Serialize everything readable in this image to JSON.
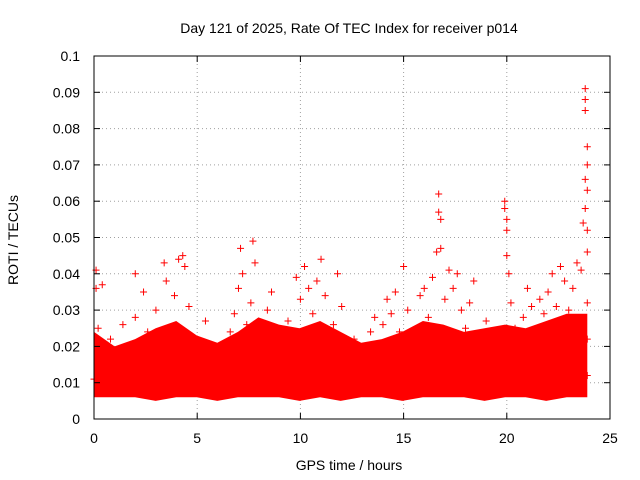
{
  "chart_data": {
    "type": "scatter",
    "title": "Day 121 of 2025, Rate Of TEC Index for receiver p014",
    "xlabel": "GPS time / hours",
    "ylabel": "ROTI / TECUs",
    "xlim": [
      0,
      25
    ],
    "ylim": [
      0,
      0.1
    ],
    "xticks": [
      0,
      5,
      10,
      15,
      20,
      25
    ],
    "xtick_labels": [
      "0",
      "5",
      "10",
      "15",
      "20",
      "25"
    ],
    "yticks": [
      0,
      0.01,
      0.02,
      0.03,
      0.04,
      0.05,
      0.06,
      0.07,
      0.08,
      0.09,
      0.1
    ],
    "ytick_labels": [
      "0",
      "0.01",
      "0.02",
      "0.03",
      "0.04",
      "0.05",
      "0.06",
      "0.07",
      "0.08",
      "0.09",
      "0.1"
    ],
    "grid": true,
    "marker": "+",
    "series_color": "#ff0000",
    "series": [
      {
        "points": [
          [
            0.0,
            0.011
          ],
          [
            0.1,
            0.041
          ],
          [
            0.1,
            0.036
          ],
          [
            0.2,
            0.025
          ],
          [
            0.2,
            0.014
          ],
          [
            0.4,
            0.037
          ],
          [
            0.4,
            0.009
          ],
          [
            0.6,
            0.018
          ],
          [
            0.8,
            0.022
          ],
          [
            1.0,
            0.013
          ],
          [
            1.2,
            0.009
          ],
          [
            1.4,
            0.026
          ],
          [
            1.6,
            0.02
          ],
          [
            1.8,
            0.017
          ],
          [
            2.0,
            0.04
          ],
          [
            2.0,
            0.028
          ],
          [
            2.2,
            0.012
          ],
          [
            2.4,
            0.035
          ],
          [
            2.6,
            0.024
          ],
          [
            2.8,
            0.011
          ],
          [
            3.0,
            0.03
          ],
          [
            3.2,
            0.022
          ],
          [
            3.4,
            0.043
          ],
          [
            3.5,
            0.038
          ],
          [
            3.7,
            0.019
          ],
          [
            3.9,
            0.034
          ],
          [
            4.1,
            0.044
          ],
          [
            4.3,
            0.045
          ],
          [
            4.4,
            0.042
          ],
          [
            4.6,
            0.031
          ],
          [
            4.8,
            0.018
          ],
          [
            5.0,
            0.022
          ],
          [
            5.2,
            0.012
          ],
          [
            5.4,
            0.027
          ],
          [
            5.6,
            0.008
          ],
          [
            5.8,
            0.016
          ],
          [
            6.0,
            0.013
          ],
          [
            6.2,
            0.01
          ],
          [
            6.4,
            0.019
          ],
          [
            6.6,
            0.024
          ],
          [
            6.8,
            0.029
          ],
          [
            7.0,
            0.036
          ],
          [
            7.1,
            0.047
          ],
          [
            7.2,
            0.04
          ],
          [
            7.4,
            0.026
          ],
          [
            7.6,
            0.032
          ],
          [
            7.7,
            0.049
          ],
          [
            7.8,
            0.043
          ],
          [
            8.0,
            0.021
          ],
          [
            8.2,
            0.013
          ],
          [
            8.4,
            0.03
          ],
          [
            8.6,
            0.035
          ],
          [
            8.8,
            0.024
          ],
          [
            9.0,
            0.015
          ],
          [
            9.2,
            0.011
          ],
          [
            9.4,
            0.027
          ],
          [
            9.6,
            0.02
          ],
          [
            9.8,
            0.039
          ],
          [
            10.0,
            0.033
          ],
          [
            10.2,
            0.042
          ],
          [
            10.4,
            0.036
          ],
          [
            10.6,
            0.029
          ],
          [
            10.8,
            0.038
          ],
          [
            11.0,
            0.044
          ],
          [
            11.2,
            0.034
          ],
          [
            11.4,
            0.016
          ],
          [
            11.6,
            0.026
          ],
          [
            11.8,
            0.04
          ],
          [
            12.0,
            0.031
          ],
          [
            12.2,
            0.019
          ],
          [
            12.4,
            0.012
          ],
          [
            12.6,
            0.022
          ],
          [
            12.8,
            0.015
          ],
          [
            13.0,
            0.009
          ],
          [
            13.2,
            0.017
          ],
          [
            13.4,
            0.024
          ],
          [
            13.6,
            0.028
          ],
          [
            13.8,
            0.02
          ],
          [
            14.0,
            0.026
          ],
          [
            14.2,
            0.033
          ],
          [
            14.4,
            0.029
          ],
          [
            14.6,
            0.035
          ],
          [
            14.8,
            0.024
          ],
          [
            15.0,
            0.018
          ],
          [
            15.0,
            0.042
          ],
          [
            15.2,
            0.03
          ],
          [
            15.4,
            0.014
          ],
          [
            15.6,
            0.021
          ],
          [
            15.8,
            0.034
          ],
          [
            16.0,
            0.036
          ],
          [
            16.2,
            0.028
          ],
          [
            16.4,
            0.039
          ],
          [
            16.6,
            0.046
          ],
          [
            16.7,
            0.062
          ],
          [
            16.7,
            0.057
          ],
          [
            16.8,
            0.055
          ],
          [
            16.8,
            0.047
          ],
          [
            17.0,
            0.033
          ],
          [
            17.2,
            0.041
          ],
          [
            17.4,
            0.036
          ],
          [
            17.6,
            0.04
          ],
          [
            17.8,
            0.03
          ],
          [
            18.0,
            0.025
          ],
          [
            18.2,
            0.032
          ],
          [
            18.4,
            0.038
          ],
          [
            18.6,
            0.022
          ],
          [
            18.8,
            0.015
          ],
          [
            19.0,
            0.027
          ],
          [
            19.2,
            0.02
          ],
          [
            19.4,
            0.024
          ],
          [
            19.6,
            0.018
          ],
          [
            19.9,
            0.06
          ],
          [
            19.9,
            0.058
          ],
          [
            20.0,
            0.055
          ],
          [
            20.0,
            0.052
          ],
          [
            20.0,
            0.045
          ],
          [
            20.1,
            0.04
          ],
          [
            20.2,
            0.032
          ],
          [
            20.4,
            0.025
          ],
          [
            20.6,
            0.02
          ],
          [
            20.8,
            0.028
          ],
          [
            21.0,
            0.036
          ],
          [
            21.2,
            0.031
          ],
          [
            21.4,
            0.024
          ],
          [
            21.6,
            0.033
          ],
          [
            21.8,
            0.029
          ],
          [
            22.0,
            0.035
          ],
          [
            22.2,
            0.04
          ],
          [
            22.4,
            0.031
          ],
          [
            22.6,
            0.042
          ],
          [
            22.8,
            0.038
          ],
          [
            23.0,
            0.03
          ],
          [
            23.2,
            0.036
          ],
          [
            23.4,
            0.043
          ],
          [
            23.6,
            0.041
          ],
          [
            23.7,
            0.054
          ],
          [
            23.8,
            0.058
          ],
          [
            23.8,
            0.066
          ],
          [
            23.8,
            0.085
          ],
          [
            23.8,
            0.091
          ],
          [
            23.8,
            0.088
          ],
          [
            23.9,
            0.075
          ],
          [
            23.9,
            0.07
          ],
          [
            23.9,
            0.063
          ],
          [
            23.9,
            0.052
          ],
          [
            23.9,
            0.046
          ],
          [
            23.9,
            0.032
          ],
          [
            23.9,
            0.022
          ],
          [
            23.9,
            0.012
          ]
        ]
      }
    ],
    "band": {
      "description_hours": [
        0,
        23.9
      ],
      "lower": [
        0.006,
        0.006,
        0.006,
        0.005,
        0.006,
        0.006,
        0.005,
        0.006,
        0.006,
        0.006,
        0.005,
        0.006,
        0.005,
        0.006,
        0.006,
        0.005,
        0.006,
        0.006,
        0.006,
        0.005,
        0.006,
        0.006,
        0.005,
        0.006,
        0.006
      ],
      "upper": [
        0.024,
        0.02,
        0.022,
        0.025,
        0.027,
        0.023,
        0.021,
        0.024,
        0.028,
        0.026,
        0.025,
        0.027,
        0.024,
        0.021,
        0.022,
        0.024,
        0.027,
        0.026,
        0.024,
        0.025,
        0.026,
        0.025,
        0.027,
        0.029,
        0.029
      ]
    }
  }
}
